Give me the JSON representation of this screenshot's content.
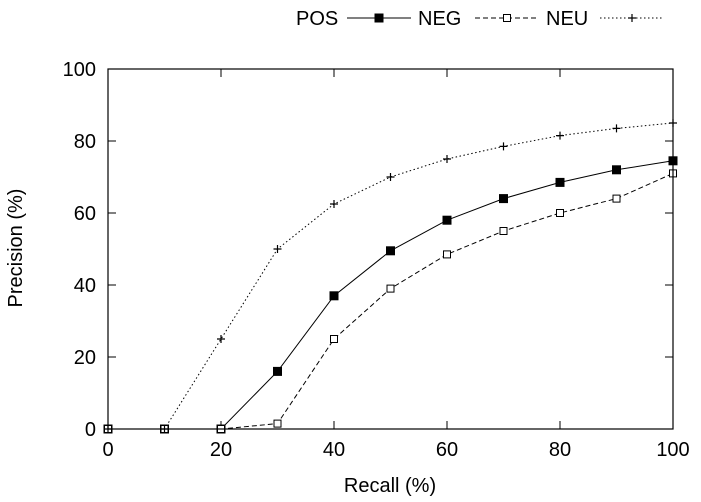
{
  "chart_data": {
    "type": "line",
    "title": "",
    "xlabel": "Recall (%)",
    "ylabel": "Precision (%)",
    "xlim": [
      0,
      100
    ],
    "ylim": [
      0,
      100
    ],
    "xticks": [
      0,
      20,
      40,
      60,
      80,
      100
    ],
    "yticks": [
      0,
      20,
      40,
      60,
      80,
      100
    ],
    "legend_position": "top-right",
    "x": [
      0,
      10,
      20,
      30,
      40,
      50,
      60,
      70,
      80,
      90,
      100
    ],
    "series": [
      {
        "name": "POS",
        "line_style": "solid",
        "marker": "filled-square",
        "values": [
          0,
          0,
          0,
          16,
          37,
          49.5,
          58,
          64,
          68.5,
          72,
          74.5
        ]
      },
      {
        "name": "NEG",
        "line_style": "dashed",
        "marker": "open-square",
        "values": [
          0,
          0,
          0,
          1.5,
          25,
          39,
          48.5,
          55,
          60,
          64,
          71
        ]
      },
      {
        "name": "NEU",
        "line_style": "dotted",
        "marker": "plus",
        "values": [
          0,
          0,
          25,
          50,
          62.5,
          70,
          75,
          78.5,
          81.5,
          83.5,
          85
        ]
      }
    ]
  }
}
